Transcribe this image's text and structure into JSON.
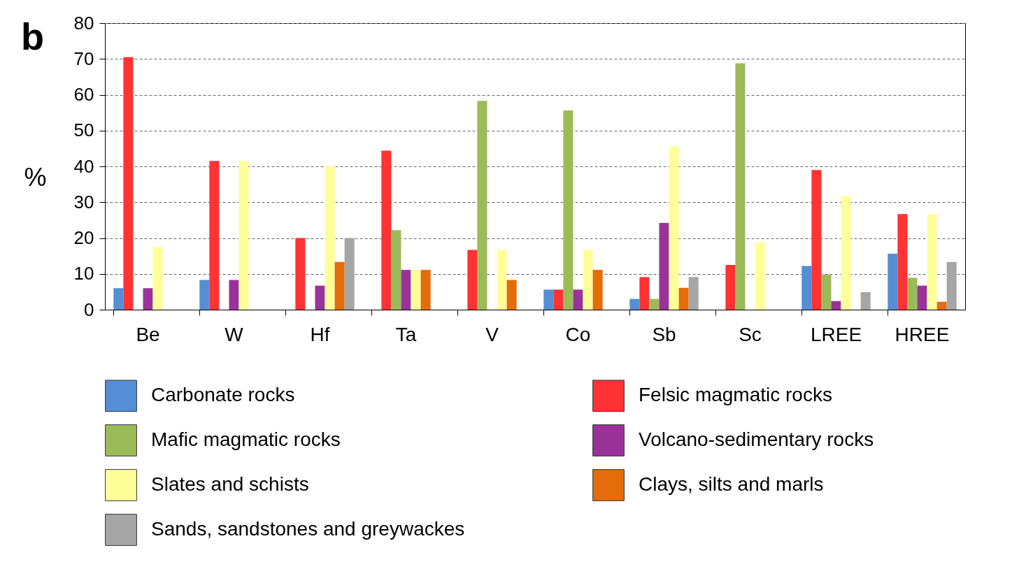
{
  "chart_data": {
    "type": "bar",
    "title": "b",
    "ylabel": "%",
    "categories": [
      "Be",
      "W",
      "Hf",
      "Ta",
      "V",
      "Co",
      "Sb",
      "Sc",
      "LREE",
      "HREE"
    ],
    "series": [
      {
        "name": "Carbonate rocks",
        "color": "#558ed5",
        "values": [
          6,
          8.3,
          0,
          0,
          0,
          5.6,
          3,
          0,
          12.2,
          15.6
        ]
      },
      {
        "name": "Felsic magmatic rocks",
        "color": "#ff3333",
        "values": [
          70.5,
          41.5,
          20,
          44.4,
          16.7,
          5.6,
          9.1,
          12.5,
          39,
          26.7
        ]
      },
      {
        "name": "Mafic magmatic rocks",
        "color": "#9bbb59",
        "values": [
          0,
          0,
          0,
          22.2,
          58.3,
          55.6,
          3,
          68.8,
          9.8,
          8.9
        ]
      },
      {
        "name": "Volcano-sedimentary rocks",
        "color": "#993399",
        "values": [
          6,
          8.3,
          6.7,
          11.1,
          0,
          5.6,
          24.2,
          0,
          2.4,
          6.7
        ]
      },
      {
        "name": "Slates and schists",
        "color": "#ffff99",
        "values": [
          17.5,
          41.5,
          40,
          11.1,
          16.7,
          16.7,
          45.5,
          18.8,
          31.7,
          26.7
        ]
      },
      {
        "name": "Clays, silts and marls",
        "color": "#e46c0a",
        "values": [
          0,
          0,
          13.3,
          11.1,
          8.3,
          11.1,
          6.1,
          0,
          0,
          2.2
        ]
      },
      {
        "name": "Sands, sandstones and greywackes",
        "color": "#a6a6a6",
        "values": [
          0,
          0,
          20,
          0,
          0,
          0,
          9.1,
          0,
          4.9,
          13.3
        ]
      }
    ],
    "ylim": [
      0,
      80
    ],
    "yticks": [
      0,
      10,
      20,
      30,
      40,
      50,
      60,
      70,
      80
    ],
    "grid": "y",
    "legend": "bottom"
  }
}
